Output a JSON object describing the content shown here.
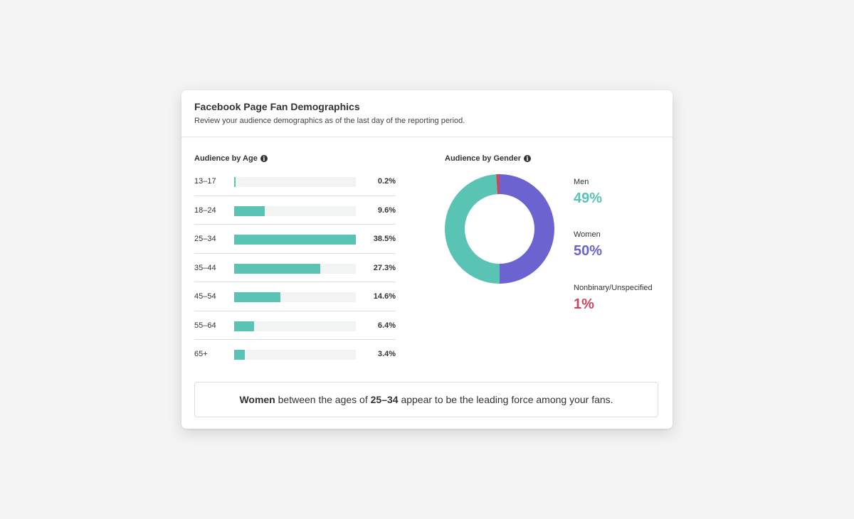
{
  "card": {
    "title": "Facebook Page Fan Demographics",
    "subtitle": "Review your audience demographics as of the last day of the reporting period."
  },
  "age_section": {
    "label": "Audience by Age",
    "info_icon": "info-icon"
  },
  "gender_section": {
    "label": "Audience by Gender",
    "info_icon": "info-icon"
  },
  "colors": {
    "teal": "#59c4b4",
    "purple": "#6b63cf",
    "red": "#c8465e"
  },
  "chart_data": [
    {
      "type": "bar",
      "orientation": "horizontal",
      "title": "Audience by Age",
      "categories": [
        "13–17",
        "18–24",
        "25–34",
        "35–44",
        "45–54",
        "55–64",
        "65+"
      ],
      "values": [
        0.2,
        9.6,
        38.5,
        27.3,
        14.6,
        6.4,
        3.4
      ],
      "labels": [
        "0.2%",
        "9.6%",
        "38.5%",
        "27.3%",
        "14.6%",
        "6.4%",
        "3.4%"
      ],
      "xlim": [
        0,
        38.5
      ],
      "color": "#59c4b4"
    },
    {
      "type": "pie",
      "style": "donut",
      "title": "Audience by Gender",
      "slices": [
        {
          "name": "Men",
          "value": 49,
          "label": "49%",
          "color": "#59c4b4"
        },
        {
          "name": "Women",
          "value": 50,
          "label": "50%",
          "color": "#6b63cf"
        },
        {
          "name": "Nonbinary/Unspecified",
          "value": 1,
          "label": "1%",
          "color": "#c8465e"
        }
      ]
    }
  ],
  "insight": {
    "gender": "Women",
    "middle": " between the ages of ",
    "age": "25–34",
    "end": " appear to be the leading force among your fans."
  }
}
